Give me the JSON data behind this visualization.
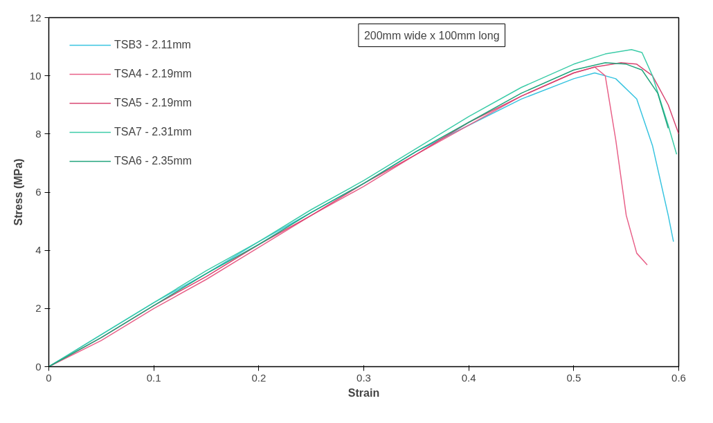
{
  "chart_data": {
    "type": "line",
    "xlabel": "Strain",
    "ylabel": "Stress (MPa)",
    "annotations": [
      "200mm wide x 100mm long"
    ],
    "xlim": [
      0,
      0.6
    ],
    "xticks": [
      0,
      0.1,
      0.2,
      0.3,
      0.4,
      0.5,
      0.6
    ],
    "ylim": [
      0,
      12
    ],
    "yticks": [
      0,
      2,
      4,
      6,
      8,
      10,
      12
    ],
    "grid": false,
    "legend": "top left",
    "line_style": "solid",
    "series": [
      {
        "name": "TSB3 - 2.11mm",
        "color": "#38c4e0",
        "x": [
          0,
          0.05,
          0.1,
          0.15,
          0.2,
          0.25,
          0.3,
          0.35,
          0.4,
          0.45,
          0.5,
          0.52,
          0.54,
          0.56,
          0.575,
          0.59,
          0.595
        ],
        "values": [
          0,
          1.1,
          2.2,
          3.2,
          4.3,
          5.3,
          6.3,
          7.4,
          8.3,
          9.2,
          9.9,
          10.1,
          9.9,
          9.2,
          7.6,
          5.2,
          4.3
        ]
      },
      {
        "name": "TSA4 - 2.19mm",
        "color": "#e86088",
        "x": [
          0,
          0.05,
          0.1,
          0.15,
          0.2,
          0.25,
          0.3,
          0.35,
          0.4,
          0.45,
          0.5,
          0.52,
          0.53,
          0.54,
          0.55,
          0.56,
          0.57
        ],
        "values": [
          0,
          0.9,
          2.0,
          3.0,
          4.1,
          5.2,
          6.2,
          7.3,
          8.3,
          9.3,
          10.1,
          10.3,
          10.0,
          7.8,
          5.2,
          3.9,
          3.5
        ]
      },
      {
        "name": "TSA5 - 2.19mm",
        "color": "#d84470",
        "x": [
          0,
          0.05,
          0.1,
          0.15,
          0.2,
          0.25,
          0.3,
          0.35,
          0.4,
          0.45,
          0.5,
          0.52,
          0.545,
          0.56,
          0.575,
          0.59,
          0.6
        ],
        "values": [
          0,
          1.0,
          2.1,
          3.1,
          4.2,
          5.2,
          6.3,
          7.3,
          8.4,
          9.3,
          10.1,
          10.3,
          10.45,
          10.4,
          10.0,
          9.0,
          8.0
        ]
      },
      {
        "name": "TSA7 - 2.31mm",
        "color": "#3ccca8",
        "x": [
          0,
          0.05,
          0.1,
          0.15,
          0.2,
          0.25,
          0.3,
          0.35,
          0.4,
          0.45,
          0.5,
          0.53,
          0.555,
          0.565,
          0.575,
          0.59,
          0.598
        ],
        "values": [
          0,
          1.1,
          2.2,
          3.3,
          4.3,
          5.4,
          6.4,
          7.5,
          8.6,
          9.6,
          10.4,
          10.75,
          10.9,
          10.8,
          10.0,
          8.3,
          7.3
        ]
      },
      {
        "name": "TSA6 - 2.35mm",
        "color": "#20a47c",
        "x": [
          0,
          0.05,
          0.1,
          0.15,
          0.2,
          0.25,
          0.3,
          0.35,
          0.4,
          0.45,
          0.5,
          0.53,
          0.55,
          0.565,
          0.58,
          0.59
        ],
        "values": [
          0,
          1.0,
          2.1,
          3.2,
          4.2,
          5.3,
          6.3,
          7.4,
          8.4,
          9.4,
          10.2,
          10.45,
          10.4,
          10.2,
          9.4,
          8.2
        ]
      }
    ]
  }
}
